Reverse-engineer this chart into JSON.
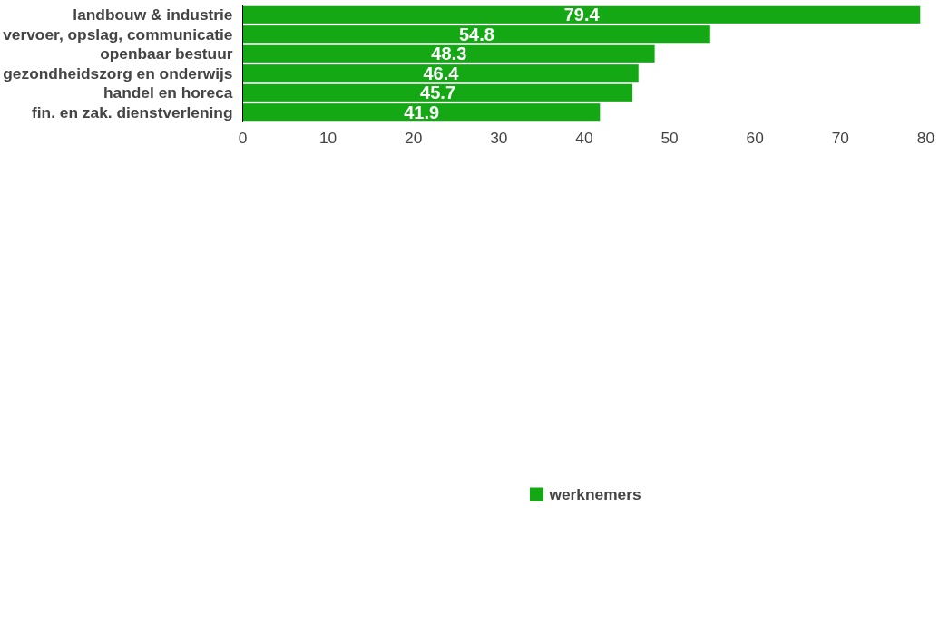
{
  "chart_data": {
    "type": "bar",
    "orientation": "horizontal",
    "categories": [
      "landbouw & industrie",
      "vervoer, opslag, communicatie",
      "openbaar bestuur",
      "gezondheidszorg en onderwijs",
      "handel en horeca",
      "fin. en zak. dienstverlening"
    ],
    "series": [
      {
        "name": "werknemers",
        "color": "#14a814",
        "values": [
          79.4,
          54.8,
          48.3,
          46.4,
          45.7,
          41.9
        ]
      }
    ],
    "xlim": [
      0,
      80
    ],
    "xticks": [
      0,
      10,
      20,
      30,
      40,
      50,
      60,
      70,
      80
    ],
    "data_labels": true,
    "grid": false,
    "legend": "bottom"
  }
}
